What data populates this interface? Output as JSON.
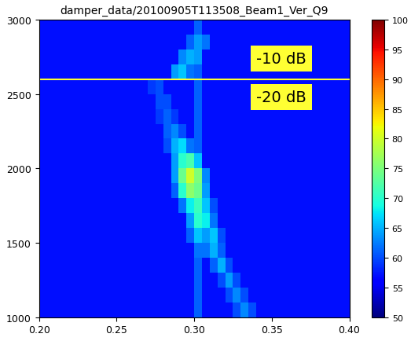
{
  "chart_data": {
    "type": "heatmap",
    "title": "damper_data/20100905T113508_Beam1_Ver_Q9",
    "xlim": [
      0.2,
      0.4
    ],
    "xticks": [
      {
        "value": 0.2,
        "label": "0.20"
      },
      {
        "value": 0.25,
        "label": "0.25"
      },
      {
        "value": 0.3,
        "label": "0.30"
      },
      {
        "value": 0.35,
        "label": "0.35"
      },
      {
        "value": 0.4,
        "label": "0.40"
      }
    ],
    "ylim": [
      1000,
      3000
    ],
    "yticks": [
      1000,
      1500,
      2000,
      2500,
      3000
    ],
    "colorbar": {
      "lim": [
        50,
        100
      ],
      "ticks": [
        50,
        55,
        60,
        65,
        70,
        75,
        80,
        85,
        90,
        95,
        100
      ]
    },
    "hlines": [
      {
        "value": 2600,
        "color": "#ffff33"
      }
    ],
    "annotations": [
      "-10 dB",
      "-20 dB"
    ],
    "cells": [
      [
        57,
        57,
        57,
        57,
        57,
        57,
        57,
        57,
        57,
        57,
        57,
        57,
        57,
        57,
        57,
        57,
        57,
        57,
        57,
        57,
        61,
        57,
        57,
        57,
        57,
        60,
        63,
        60,
        57,
        57,
        57,
        57,
        57,
        57,
        57,
        57,
        57,
        57,
        57,
        57
      ],
      [
        57,
        57,
        57,
        57,
        57,
        57,
        57,
        57,
        57,
        57,
        57,
        57,
        57,
        57,
        57,
        57,
        57,
        57,
        57,
        57,
        61,
        57,
        57,
        57,
        60,
        63,
        60,
        57,
        57,
        57,
        57,
        57,
        57,
        57,
        57,
        57,
        57,
        57,
        57,
        57
      ],
      [
        57,
        57,
        57,
        57,
        57,
        57,
        57,
        57,
        57,
        57,
        57,
        57,
        57,
        57,
        57,
        57,
        57,
        57,
        57,
        57,
        61,
        57,
        57,
        60,
        64,
        60,
        57,
        57,
        57,
        57,
        57,
        57,
        57,
        57,
        57,
        57,
        57,
        57,
        57,
        57
      ],
      [
        57,
        57,
        57,
        57,
        57,
        57,
        57,
        57,
        57,
        57,
        57,
        57,
        57,
        57,
        57,
        57,
        57,
        57,
        57,
        57,
        61,
        57,
        61,
        65,
        60,
        57,
        57,
        57,
        57,
        57,
        57,
        57,
        57,
        57,
        57,
        57,
        57,
        57,
        57,
        57
      ],
      [
        57,
        57,
        57,
        57,
        57,
        57,
        57,
        57,
        57,
        57,
        57,
        57,
        57,
        57,
        57,
        57,
        57,
        57,
        57,
        57,
        62,
        62,
        65,
        61,
        57,
        57,
        57,
        57,
        57,
        57,
        57,
        57,
        57,
        57,
        57,
        57,
        57,
        57,
        57,
        57
      ],
      [
        57,
        57,
        57,
        57,
        57,
        57,
        57,
        57,
        57,
        57,
        57,
        57,
        57,
        57,
        57,
        57,
        57,
        57,
        57,
        61,
        66,
        64,
        66,
        60,
        57,
        57,
        57,
        57,
        57,
        57,
        57,
        57,
        57,
        57,
        57,
        57,
        57,
        57,
        57,
        57
      ],
      [
        57,
        57,
        57,
        57,
        57,
        57,
        57,
        57,
        57,
        57,
        57,
        57,
        57,
        57,
        57,
        57,
        57,
        57,
        57,
        64,
        70,
        68,
        62,
        57,
        57,
        57,
        57,
        57,
        57,
        57,
        57,
        57,
        57,
        57,
        57,
        57,
        57,
        57,
        57,
        57
      ],
      [
        57,
        57,
        57,
        57,
        57,
        57,
        57,
        57,
        57,
        57,
        57,
        57,
        57,
        57,
        57,
        57,
        57,
        57,
        62,
        68,
        71,
        66,
        60,
        57,
        57,
        57,
        57,
        57,
        57,
        57,
        57,
        57,
        57,
        57,
        57,
        57,
        57,
        57,
        57,
        57
      ],
      [
        57,
        57,
        57,
        57,
        57,
        57,
        57,
        57,
        57,
        57,
        57,
        57,
        57,
        57,
        57,
        57,
        57,
        61,
        70,
        76,
        74,
        64,
        57,
        57,
        57,
        57,
        57,
        57,
        57,
        57,
        57,
        57,
        57,
        57,
        57,
        57,
        57,
        57,
        57,
        57
      ],
      [
        57,
        57,
        57,
        57,
        57,
        57,
        57,
        57,
        57,
        57,
        57,
        57,
        57,
        57,
        57,
        57,
        57,
        64,
        74,
        80,
        75,
        63,
        57,
        57,
        57,
        57,
        57,
        57,
        57,
        57,
        57,
        57,
        57,
        57,
        57,
        57,
        57,
        57,
        57,
        57
      ],
      [
        57,
        57,
        57,
        57,
        57,
        57,
        57,
        57,
        57,
        57,
        57,
        57,
        57,
        57,
        57,
        57,
        57,
        64,
        70,
        72,
        66,
        57,
        57,
        57,
        57,
        57,
        57,
        57,
        57,
        57,
        57,
        57,
        57,
        57,
        57,
        57,
        57,
        57,
        57,
        57
      ],
      [
        57,
        57,
        57,
        57,
        57,
        57,
        57,
        57,
        57,
        57,
        57,
        57,
        57,
        57,
        57,
        57,
        60,
        65,
        67,
        62,
        61,
        57,
        57,
        57,
        57,
        57,
        57,
        57,
        57,
        57,
        57,
        57,
        57,
        57,
        57,
        57,
        57,
        57,
        57,
        57
      ],
      [
        57,
        57,
        57,
        57,
        57,
        57,
        57,
        57,
        57,
        57,
        57,
        57,
        57,
        57,
        57,
        57,
        61,
        63,
        60,
        57,
        61,
        57,
        57,
        57,
        57,
        57,
        57,
        57,
        57,
        57,
        57,
        57,
        57,
        57,
        57,
        57,
        57,
        57,
        57,
        57
      ],
      [
        57,
        57,
        57,
        57,
        57,
        57,
        57,
        57,
        57,
        57,
        57,
        57,
        57,
        57,
        57,
        59,
        61,
        59,
        57,
        57,
        61,
        57,
        57,
        57,
        57,
        57,
        57,
        57,
        57,
        57,
        57,
        57,
        57,
        57,
        57,
        57,
        57,
        57,
        57,
        57
      ],
      [
        57,
        57,
        57,
        57,
        57,
        57,
        57,
        57,
        57,
        57,
        57,
        57,
        57,
        57,
        57,
        60,
        60,
        57,
        57,
        57,
        61,
        57,
        57,
        57,
        57,
        57,
        57,
        57,
        57,
        57,
        57,
        57,
        57,
        57,
        57,
        57,
        57,
        57,
        57,
        57
      ],
      [
        57,
        57,
        57,
        57,
        57,
        57,
        57,
        57,
        57,
        57,
        57,
        57,
        57,
        57,
        59,
        60,
        57,
        57,
        57,
        57,
        61,
        57,
        57,
        57,
        57,
        57,
        57,
        57,
        57,
        57,
        57,
        57,
        57,
        57,
        57,
        57,
        57,
        57,
        57,
        57
      ],
      [
        57,
        57,
        57,
        57,
        57,
        57,
        57,
        57,
        57,
        57,
        57,
        57,
        57,
        57,
        57,
        57,
        57,
        64,
        66,
        62,
        61,
        57,
        57,
        57,
        57,
        57,
        57,
        57,
        57,
        57,
        57,
        57,
        57,
        57,
        57,
        57,
        57,
        57,
        57,
        57
      ],
      [
        57,
        57,
        57,
        57,
        57,
        57,
        57,
        57,
        57,
        57,
        57,
        57,
        57,
        57,
        57,
        57,
        57,
        57,
        63,
        65,
        64,
        57,
        57,
        57,
        57,
        57,
        57,
        57,
        57,
        57,
        57,
        57,
        57,
        57,
        57,
        57,
        57,
        57,
        57,
        57
      ],
      [
        57,
        57,
        57,
        57,
        57,
        57,
        57,
        57,
        57,
        57,
        57,
        57,
        57,
        57,
        57,
        57,
        57,
        57,
        57,
        61,
        64,
        62,
        57,
        57,
        57,
        57,
        57,
        57,
        57,
        57,
        57,
        57,
        57,
        57,
        57,
        57,
        57,
        57,
        57,
        57
      ],
      [
        57,
        57,
        57,
        57,
        57,
        57,
        57,
        57,
        57,
        57,
        57,
        57,
        57,
        57,
        57,
        57,
        57,
        57,
        57,
        57,
        61,
        57,
        57,
        57,
        57,
        57,
        57,
        57,
        57,
        57,
        57,
        57,
        57,
        57,
        57,
        57,
        57,
        57,
        57,
        57
      ]
    ]
  }
}
